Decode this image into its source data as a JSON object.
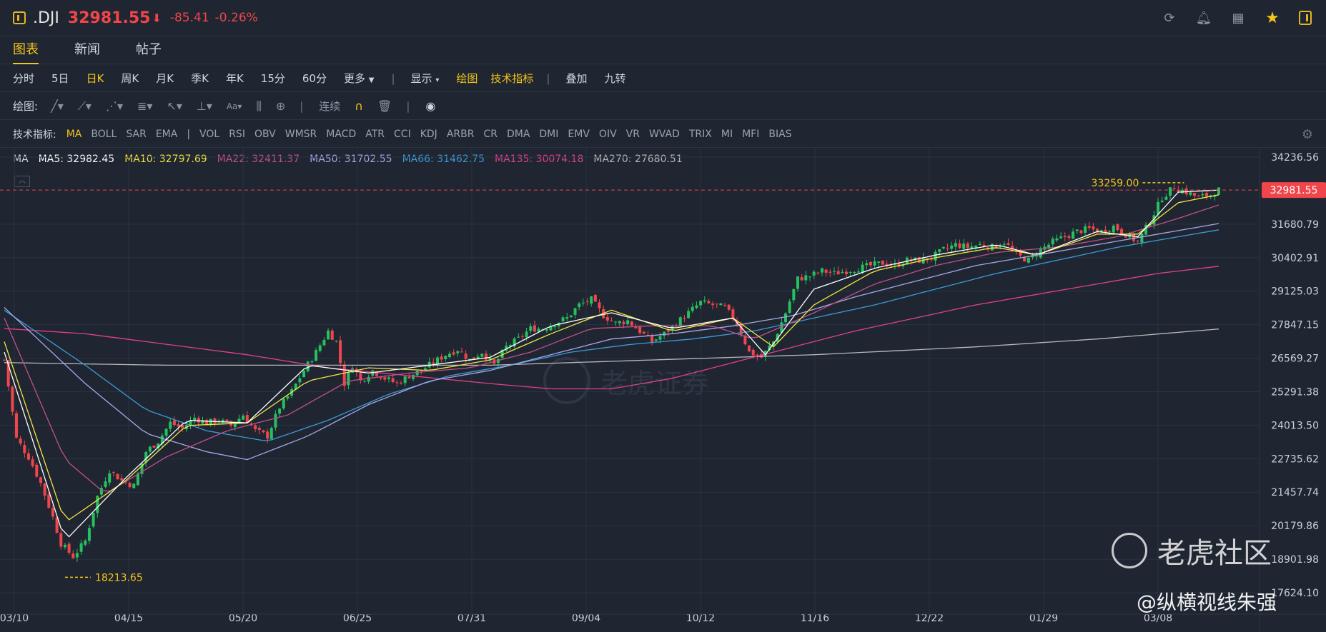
{
  "header": {
    "symbol": ".DJI",
    "price": "32981.55",
    "arrow": "⬇",
    "change": "-85.41",
    "change_pct": "-0.26%"
  },
  "tabs": [
    "图表",
    "新闻",
    "帖子"
  ],
  "periods": [
    "分时",
    "5日",
    "日K",
    "周K",
    "月K",
    "季K",
    "年K",
    "15分",
    "60分",
    "更多"
  ],
  "period_active": "日K",
  "period_extra": {
    "display": "显示",
    "draw": "绘图",
    "tech": "技术指标",
    "overlay": "叠加",
    "nine": "九转"
  },
  "drawbar": {
    "label": "绘图:",
    "continuous": "连续"
  },
  "indicators": {
    "label": "技术指标:",
    "items": [
      "MA",
      "BOLL",
      "SAR",
      "EMA",
      "|",
      "VOL",
      "RSI",
      "OBV",
      "WMSR",
      "MACD",
      "ATR",
      "CCI",
      "KDJ",
      "ARBR",
      "CR",
      "DMA",
      "DMI",
      "EMV",
      "OIV",
      "VR",
      "WVAD",
      "TRIX",
      "MI",
      "MFI",
      "BIAS"
    ],
    "active": "MA"
  },
  "ma_legend": [
    {
      "label": "MA",
      "value": "",
      "color": "#d0d6de"
    },
    {
      "label": "MA5:",
      "value": "32982.45",
      "color": "#ffffff"
    },
    {
      "label": "MA10:",
      "value": "32797.69",
      "color": "#f5e642"
    },
    {
      "label": "MA22:",
      "value": "32411.37",
      "color": "#c0508a"
    },
    {
      "label": "MA50:",
      "value": "31702.55",
      "color": "#a8a8e8"
    },
    {
      "label": "MA66:",
      "value": "31462.75",
      "color": "#3c9ad6"
    },
    {
      "label": "MA135:",
      "value": "30074.18",
      "color": "#e0408e"
    },
    {
      "label": "MA270:",
      "value": "27680.51",
      "color": "#b8b8b8"
    }
  ],
  "watermark": {
    "brand": "老虎社区",
    "center": "老虎证券",
    "author": "@纵横视线朱强"
  },
  "chart_data": {
    "type": "candlestick",
    "y_ticks": [
      "34236.56",
      "32981.55",
      "31680.79",
      "30402.91",
      "29125.03",
      "27847.15",
      "26569.27",
      "25291.38",
      "24013.50",
      "22735.62",
      "21457.74",
      "20179.86",
      "18901.98",
      "17624.10"
    ],
    "y_tick_values": [
      34236.56,
      31680.79,
      30402.91,
      29125.03,
      27847.15,
      26569.27,
      25291.38,
      24013.5,
      22735.62,
      21457.74,
      20179.86,
      18901.98,
      17624.1
    ],
    "ylim": [
      17624.1,
      34236.56
    ],
    "x_ticks": [
      "03/10",
      "04/15",
      "05/20",
      "06/25",
      "07/31",
      "09/04",
      "10/12",
      "11/16",
      "12/22",
      "01/29",
      "03/08"
    ],
    "current_price": "32981.55",
    "current_value": 32981.55,
    "high_label": "33259.00",
    "high_value": 33259.0,
    "low_label": "18213.65",
    "low_value": 18213.65,
    "colors": {
      "up": "#26c15f",
      "down": "#f0454b",
      "ma5": "#ffffff",
      "ma10": "#f5e642",
      "ma22": "#c0508a",
      "ma50": "#a8a8e8",
      "ma66": "#3c9ad6",
      "ma135": "#e0408e",
      "ma270": "#b8b8b8"
    },
    "close_path": [
      [
        0,
        26500
      ],
      [
        3,
        23500
      ],
      [
        6,
        22800
      ],
      [
        9,
        21800
      ],
      [
        12,
        20500
      ],
      [
        14,
        19500
      ],
      [
        17,
        19000
      ],
      [
        20,
        19600
      ],
      [
        23,
        21300
      ],
      [
        26,
        22300
      ],
      [
        29,
        21900
      ],
      [
        32,
        21700
      ],
      [
        35,
        23000
      ],
      [
        38,
        23400
      ],
      [
        41,
        24100
      ],
      [
        44,
        23900
      ],
      [
        47,
        24300
      ],
      [
        50,
        24100
      ],
      [
        53,
        24200
      ],
      [
        56,
        24000
      ],
      [
        59,
        24400
      ],
      [
        62,
        23800
      ],
      [
        65,
        23600
      ],
      [
        68,
        24700
      ],
      [
        71,
        25300
      ],
      [
        74,
        26100
      ],
      [
        77,
        26800
      ],
      [
        80,
        27600
      ],
      [
        82,
        27200
      ],
      [
        84,
        25600
      ],
      [
        86,
        26300
      ],
      [
        88,
        25700
      ],
      [
        91,
        26100
      ],
      [
        94,
        25800
      ],
      [
        97,
        25600
      ],
      [
        100,
        25900
      ],
      [
        103,
        26100
      ],
      [
        106,
        26400
      ],
      [
        109,
        26700
      ],
      [
        112,
        26900
      ],
      [
        115,
        26500
      ],
      [
        118,
        26800
      ],
      [
        121,
        26300
      ],
      [
        124,
        27000
      ],
      [
        127,
        27300
      ],
      [
        130,
        27700
      ],
      [
        133,
        27700
      ],
      [
        136,
        27900
      ],
      [
        139,
        28100
      ],
      [
        142,
        28600
      ],
      [
        145,
        28800
      ],
      [
        148,
        28200
      ],
      [
        151,
        27900
      ],
      [
        154,
        28000
      ],
      [
        157,
        27600
      ],
      [
        160,
        27200
      ],
      [
        163,
        27500
      ],
      [
        166,
        27900
      ],
      [
        169,
        28300
      ],
      [
        172,
        28700
      ],
      [
        175,
        28600
      ],
      [
        178,
        28500
      ],
      [
        181,
        27900
      ],
      [
        184,
        26800
      ],
      [
        187,
        26600
      ],
      [
        190,
        27200
      ],
      [
        193,
        28300
      ],
      [
        196,
        29600
      ],
      [
        199,
        29700
      ],
      [
        202,
        29900
      ],
      [
        205,
        29800
      ],
      [
        208,
        29900
      ],
      [
        211,
        30000
      ],
      [
        214,
        30100
      ],
      [
        217,
        30200
      ],
      [
        220,
        30100
      ],
      [
        223,
        30300
      ],
      [
        226,
        30300
      ],
      [
        229,
        30400
      ],
      [
        232,
        30700
      ],
      [
        235,
        30900
      ],
      [
        238,
        30800
      ],
      [
        241,
        30900
      ],
      [
        244,
        30800
      ],
      [
        247,
        31000
      ],
      [
        250,
        30500
      ],
      [
        253,
        30300
      ],
      [
        256,
        30700
      ],
      [
        259,
        31000
      ],
      [
        262,
        31200
      ],
      [
        265,
        31400
      ],
      [
        268,
        31500
      ],
      [
        271,
        31400
      ],
      [
        274,
        31600
      ],
      [
        277,
        31300
      ],
      [
        280,
        31000
      ],
      [
        283,
        31800
      ],
      [
        286,
        32700
      ],
      [
        289,
        33100
      ],
      [
        292,
        32900
      ],
      [
        295,
        32700
      ],
      [
        298,
        32800
      ],
      [
        300,
        32981.55
      ]
    ],
    "ma_points": {
      "ma5": [
        [
          0,
          26800
        ],
        [
          15,
          19600
        ],
        [
          30,
          22000
        ],
        [
          45,
          24200
        ],
        [
          60,
          24100
        ],
        [
          75,
          26300
        ],
        [
          90,
          26000
        ],
        [
          105,
          26300
        ],
        [
          120,
          26600
        ],
        [
          135,
          27800
        ],
        [
          150,
          28300
        ],
        [
          165,
          27700
        ],
        [
          180,
          28100
        ],
        [
          188,
          26700
        ],
        [
          200,
          29200
        ],
        [
          215,
          30000
        ],
        [
          230,
          30500
        ],
        [
          245,
          30900
        ],
        [
          255,
          30500
        ],
        [
          270,
          31400
        ],
        [
          280,
          31200
        ],
        [
          290,
          32900
        ],
        [
          300,
          32982
        ]
      ],
      "ma10": [
        [
          0,
          27200
        ],
        [
          15,
          20300
        ],
        [
          30,
          21900
        ],
        [
          45,
          24000
        ],
        [
          60,
          24100
        ],
        [
          75,
          25700
        ],
        [
          90,
          26200
        ],
        [
          105,
          26100
        ],
        [
          120,
          26500
        ],
        [
          135,
          27500
        ],
        [
          150,
          28400
        ],
        [
          165,
          27600
        ],
        [
          180,
          28100
        ],
        [
          190,
          27000
        ],
        [
          200,
          28600
        ],
        [
          215,
          29900
        ],
        [
          230,
          30400
        ],
        [
          245,
          30800
        ],
        [
          255,
          30500
        ],
        [
          270,
          31300
        ],
        [
          280,
          31300
        ],
        [
          290,
          32500
        ],
        [
          300,
          32798
        ]
      ],
      "ma22": [
        [
          0,
          28100
        ],
        [
          15,
          22700
        ],
        [
          25,
          21400
        ],
        [
          40,
          22800
        ],
        [
          55,
          23800
        ],
        [
          70,
          24400
        ],
        [
          85,
          25700
        ],
        [
          100,
          26000
        ],
        [
          115,
          26200
        ],
        [
          130,
          26800
        ],
        [
          145,
          27700
        ],
        [
          160,
          27800
        ],
        [
          175,
          27800
        ],
        [
          185,
          27300
        ],
        [
          200,
          28300
        ],
        [
          215,
          29400
        ],
        [
          230,
          30100
        ],
        [
          245,
          30600
        ],
        [
          260,
          30800
        ],
        [
          275,
          31200
        ],
        [
          290,
          31900
        ],
        [
          300,
          32411
        ]
      ],
      "ma50": [
        [
          0,
          28500
        ],
        [
          20,
          25600
        ],
        [
          35,
          23700
        ],
        [
          50,
          23000
        ],
        [
          60,
          22700
        ],
        [
          75,
          23600
        ],
        [
          90,
          24800
        ],
        [
          105,
          25700
        ],
        [
          120,
          26100
        ],
        [
          135,
          26700
        ],
        [
          150,
          27300
        ],
        [
          165,
          27500
        ],
        [
          180,
          27800
        ],
        [
          195,
          28200
        ],
        [
          210,
          28900
        ],
        [
          225,
          29500
        ],
        [
          240,
          30100
        ],
        [
          255,
          30500
        ],
        [
          270,
          30900
        ],
        [
          285,
          31300
        ],
        [
          300,
          31703
        ]
      ],
      "ma66": [
        [
          0,
          28400
        ],
        [
          20,
          26300
        ],
        [
          35,
          24600
        ],
        [
          50,
          23800
        ],
        [
          65,
          23400
        ],
        [
          80,
          24200
        ],
        [
          95,
          25200
        ],
        [
          110,
          25900
        ],
        [
          125,
          26300
        ],
        [
          140,
          26800
        ],
        [
          155,
          27100
        ],
        [
          170,
          27300
        ],
        [
          185,
          27600
        ],
        [
          200,
          28100
        ],
        [
          215,
          28600
        ],
        [
          230,
          29200
        ],
        [
          245,
          29800
        ],
        [
          260,
          30300
        ],
        [
          275,
          30800
        ],
        [
          290,
          31200
        ],
        [
          300,
          31463
        ]
      ],
      "ma135": [
        [
          0,
          27700
        ],
        [
          20,
          27500
        ],
        [
          40,
          27100
        ],
        [
          60,
          26700
        ],
        [
          80,
          26200
        ],
        [
          100,
          25900
        ],
        [
          120,
          25600
        ],
        [
          135,
          25400
        ],
        [
          150,
          25400
        ],
        [
          165,
          25800
        ],
        [
          180,
          26400
        ],
        [
          195,
          27000
        ],
        [
          210,
          27600
        ],
        [
          225,
          28100
        ],
        [
          240,
          28600
        ],
        [
          255,
          29000
        ],
        [
          270,
          29400
        ],
        [
          285,
          29800
        ],
        [
          300,
          30074
        ]
      ],
      "ma270": [
        [
          0,
          26400
        ],
        [
          40,
          26300
        ],
        [
          80,
          26300
        ],
        [
          120,
          26300
        ],
        [
          160,
          26500
        ],
        [
          200,
          26700
        ],
        [
          240,
          27000
        ],
        [
          270,
          27300
        ],
        [
          300,
          27681
        ]
      ]
    }
  }
}
